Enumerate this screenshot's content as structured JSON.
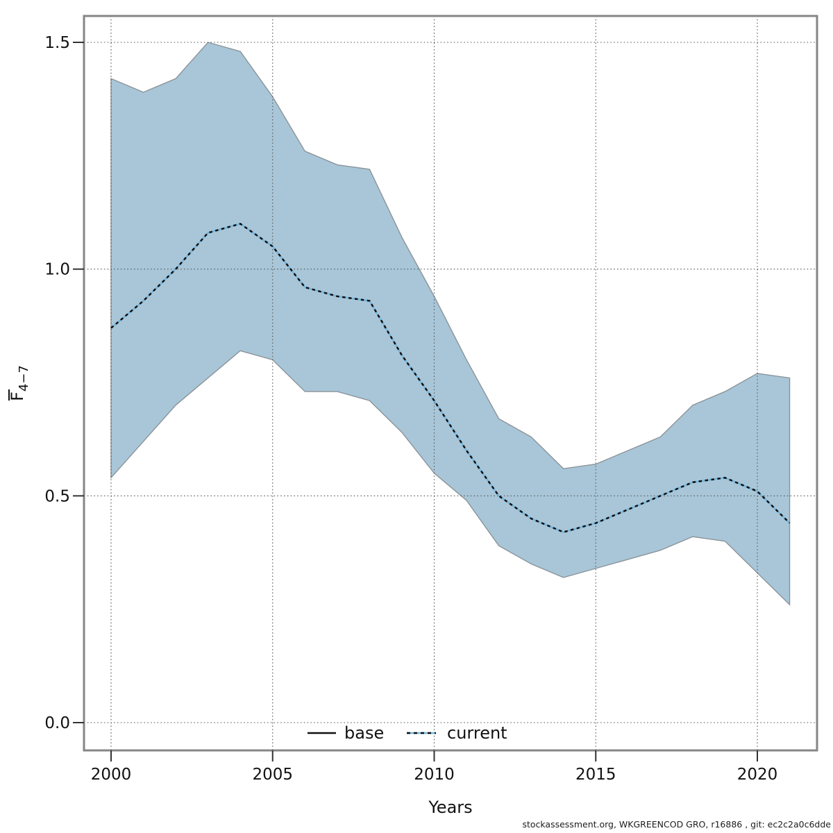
{
  "chart_data": {
    "type": "area",
    "title": "",
    "xlabel": "Years",
    "ylabel": {
      "letter": "F",
      "overbar": true,
      "subscript": "4−7"
    },
    "grid": true,
    "legend_position": "bottom-center-inside",
    "xlim": [
      1999.2,
      2021.9
    ],
    "ylim": [
      -0.06,
      1.62
    ],
    "x_ticks": {
      "values": [
        2000,
        2005,
        2010,
        2015,
        2020
      ],
      "labels": [
        "2000",
        "2005",
        "2010",
        "2015",
        "2020"
      ]
    },
    "y_ticks": {
      "values": [
        0.0,
        0.5,
        1.0,
        1.5
      ],
      "labels": [
        "0.0",
        "0.5",
        "1.0",
        "1.5"
      ]
    },
    "x": [
      2000,
      2001,
      2002,
      2003,
      2004,
      2005,
      2006,
      2007,
      2008,
      2009,
      2010,
      2011,
      2012,
      2013,
      2014,
      2015,
      2016,
      2017,
      2018,
      2019,
      2020,
      2021
    ],
    "series": [
      {
        "name": "current",
        "style": "dashed",
        "values": [
          0.87,
          0.93,
          1.0,
          1.08,
          1.1,
          1.05,
          0.96,
          0.94,
          0.93,
          0.81,
          0.71,
          0.6,
          0.5,
          0.45,
          0.42,
          0.44,
          0.47,
          0.5,
          0.53,
          0.54,
          0.51,
          0.44
        ]
      }
    ],
    "band": {
      "name": "current confidence interval",
      "lower": [
        0.54,
        0.62,
        0.7,
        0.76,
        0.82,
        0.8,
        0.73,
        0.73,
        0.71,
        0.64,
        0.55,
        0.49,
        0.39,
        0.35,
        0.32,
        0.34,
        0.36,
        0.38,
        0.41,
        0.4,
        0.33,
        0.26
      ],
      "upper": [
        1.42,
        1.39,
        1.42,
        1.5,
        1.48,
        1.38,
        1.26,
        1.23,
        1.22,
        1.07,
        0.94,
        0.8,
        0.67,
        0.63,
        0.56,
        0.57,
        0.6,
        0.63,
        0.7,
        0.73,
        0.77,
        0.76
      ]
    },
    "legend": [
      {
        "label": "base",
        "style": "solid"
      },
      {
        "label": "current",
        "style": "dashed"
      }
    ]
  },
  "footer": {
    "text": "stockassessment.org, WKGREENCOD  GRO, r16886 , git: ec2c2a0c6dde"
  },
  "colors": {
    "band_fill": "#a8c6d8",
    "band_edge": "#8b9399",
    "current_blue": "#74b6dd",
    "current_dash": "#101010",
    "grid": "#555555",
    "frame": "#868686",
    "tick": "#333333"
  }
}
